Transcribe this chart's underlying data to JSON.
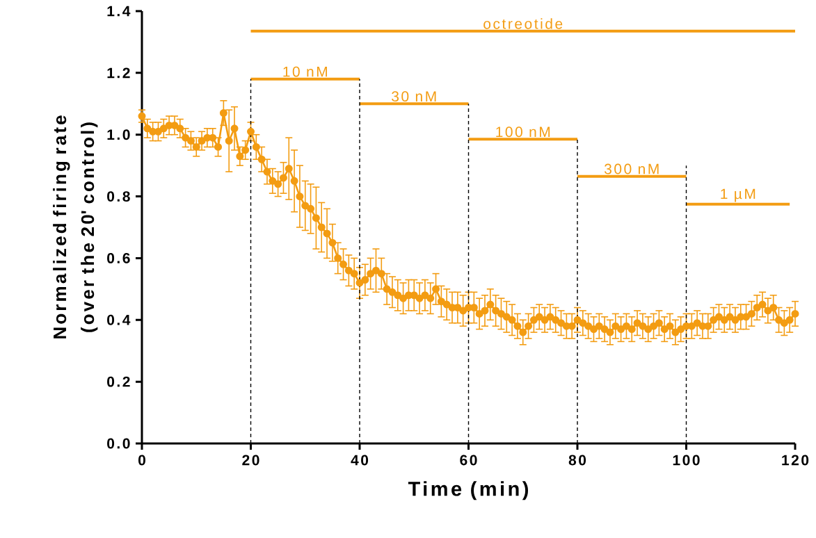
{
  "chart_data": {
    "type": "line",
    "xlabel": "Time (min)",
    "ylabel": "Normalized firing rate (over the 20' control)",
    "xlim": [
      0,
      120
    ],
    "xticks": [
      0,
      20,
      40,
      60,
      80,
      100,
      120
    ],
    "ylim": [
      0,
      1.4
    ],
    "yticks": [
      {
        "value": 0,
        "label": "0.0"
      },
      {
        "value": 0.2,
        "label": "0.2"
      },
      {
        "value": 0.4,
        "label": "0.4"
      },
      {
        "value": 0.6,
        "label": "0.6"
      },
      {
        "value": 0.8,
        "label": "0.8"
      },
      {
        "value": 1.0,
        "label": "1.0"
      },
      {
        "value": 1.2,
        "label": "1.2"
      },
      {
        "value": 1.4,
        "label": "1.4"
      }
    ],
    "grid": false,
    "series": [
      {
        "color": "#f39c12",
        "marker": "circle",
        "line_style": "solid",
        "x": [
          0,
          1,
          2,
          3,
          4,
          5,
          6,
          7,
          8,
          9,
          10,
          11,
          12,
          13,
          14,
          15,
          16,
          17,
          18,
          19,
          20,
          21,
          22,
          23,
          24,
          25,
          26,
          27,
          28,
          29,
          30,
          31,
          32,
          33,
          34,
          35,
          36,
          37,
          38,
          39,
          40,
          41,
          42,
          43,
          44,
          45,
          46,
          47,
          48,
          49,
          50,
          51,
          52,
          53,
          54,
          55,
          56,
          57,
          58,
          59,
          60,
          61,
          62,
          63,
          64,
          65,
          66,
          67,
          68,
          69,
          70,
          71,
          72,
          73,
          74,
          75,
          76,
          77,
          78,
          79,
          80,
          81,
          82,
          83,
          84,
          85,
          86,
          87,
          88,
          89,
          90,
          91,
          92,
          93,
          94,
          95,
          96,
          97,
          98,
          99,
          100,
          101,
          102,
          103,
          104,
          105,
          106,
          107,
          108,
          109,
          110,
          111,
          112,
          113,
          114,
          115,
          116,
          117,
          118,
          119,
          120
        ],
        "values": [
          1.06,
          1.02,
          1.01,
          1.01,
          1.02,
          1.03,
          1.03,
          1.02,
          0.99,
          0.98,
          0.96,
          0.98,
          0.99,
          0.99,
          0.96,
          1.07,
          0.98,
          1.02,
          0.93,
          0.95,
          1.01,
          0.96,
          0.92,
          0.88,
          0.85,
          0.84,
          0.86,
          0.89,
          0.85,
          0.8,
          0.77,
          0.76,
          0.73,
          0.7,
          0.68,
          0.65,
          0.6,
          0.58,
          0.56,
          0.55,
          0.52,
          0.53,
          0.55,
          0.56,
          0.55,
          0.5,
          0.49,
          0.48,
          0.47,
          0.48,
          0.48,
          0.47,
          0.48,
          0.47,
          0.5,
          0.46,
          0.45,
          0.44,
          0.44,
          0.43,
          0.44,
          0.44,
          0.42,
          0.43,
          0.45,
          0.43,
          0.42,
          0.41,
          0.4,
          0.38,
          0.36,
          0.38,
          0.4,
          0.41,
          0.4,
          0.41,
          0.4,
          0.39,
          0.38,
          0.38,
          0.4,
          0.39,
          0.38,
          0.37,
          0.38,
          0.37,
          0.36,
          0.38,
          0.37,
          0.38,
          0.37,
          0.39,
          0.38,
          0.37,
          0.38,
          0.39,
          0.37,
          0.38,
          0.36,
          0.37,
          0.38,
          0.38,
          0.39,
          0.38,
          0.38,
          0.4,
          0.41,
          0.4,
          0.41,
          0.4,
          0.41,
          0.41,
          0.42,
          0.44,
          0.45,
          0.43,
          0.44,
          0.4,
          0.39,
          0.4,
          0.42
        ],
        "errors": [
          0.02,
          0.03,
          0.03,
          0.03,
          0.03,
          0.03,
          0.03,
          0.03,
          0.03,
          0.03,
          0.03,
          0.03,
          0.03,
          0.03,
          0.03,
          0.04,
          0.1,
          0.07,
          0.03,
          0.03,
          0.03,
          0.04,
          0.04,
          0.04,
          0.04,
          0.04,
          0.05,
          0.1,
          0.1,
          0.1,
          0.08,
          0.08,
          0.1,
          0.08,
          0.08,
          0.06,
          0.05,
          0.05,
          0.05,
          0.05,
          0.05,
          0.05,
          0.05,
          0.07,
          0.05,
          0.05,
          0.05,
          0.05,
          0.05,
          0.05,
          0.05,
          0.05,
          0.05,
          0.05,
          0.05,
          0.05,
          0.05,
          0.05,
          0.05,
          0.05,
          0.05,
          0.05,
          0.05,
          0.05,
          0.05,
          0.05,
          0.05,
          0.05,
          0.05,
          0.04,
          0.04,
          0.04,
          0.04,
          0.04,
          0.04,
          0.04,
          0.04,
          0.04,
          0.04,
          0.04,
          0.04,
          0.04,
          0.04,
          0.04,
          0.04,
          0.04,
          0.04,
          0.04,
          0.04,
          0.04,
          0.04,
          0.04,
          0.04,
          0.04,
          0.04,
          0.04,
          0.04,
          0.04,
          0.04,
          0.04,
          0.04,
          0.04,
          0.04,
          0.04,
          0.04,
          0.04,
          0.04,
          0.04,
          0.04,
          0.04,
          0.04,
          0.04,
          0.04,
          0.04,
          0.04,
          0.04,
          0.04,
          0.04,
          0.04,
          0.04,
          0.04
        ]
      },
      {
        "name": "octreotide",
        "color": "#f39c12",
        "marker": "none",
        "line_style": "solid",
        "x": [
          20,
          120
        ],
        "values": [
          1.335,
          1.335
        ]
      },
      {
        "name": "10 nM",
        "color": "#f39c12",
        "marker": "none",
        "line_style": "solid",
        "x": [
          20,
          40
        ],
        "values": [
          1.18,
          1.18
        ]
      },
      {
        "name": "30 nM",
        "color": "#f39c12",
        "marker": "none",
        "line_style": "solid",
        "x": [
          40,
          60
        ],
        "values": [
          1.1,
          1.1
        ]
      },
      {
        "name": "100 nM",
        "color": "#f39c12",
        "marker": "none",
        "line_style": "solid",
        "x": [
          60,
          80
        ],
        "values": [
          0.985,
          0.985
        ]
      },
      {
        "name": "300 nM",
        "color": "#f39c12",
        "marker": "none",
        "line_style": "solid",
        "x": [
          80,
          100
        ],
        "values": [
          0.865,
          0.865
        ]
      },
      {
        "name": "1 µM",
        "color": "#f39c12",
        "marker": "none",
        "line_style": "solid",
        "x": [
          100,
          119
        ],
        "values": [
          0.775,
          0.775
        ]
      },
      {
        "color": "#000000",
        "marker": "none",
        "line_style": "dashed",
        "x": [
          20,
          20
        ],
        "values": [
          0,
          1.18
        ]
      },
      {
        "color": "#000000",
        "marker": "none",
        "line_style": "dashed",
        "x": [
          40,
          40
        ],
        "values": [
          0,
          1.18
        ]
      },
      {
        "color": "#000000",
        "marker": "none",
        "line_style": "dashed",
        "x": [
          60,
          60
        ],
        "values": [
          0,
          1.1
        ]
      },
      {
        "color": "#000000",
        "marker": "none",
        "line_style": "dashed",
        "x": [
          80,
          80
        ],
        "values": [
          0,
          0.985
        ]
      },
      {
        "color": "#000000",
        "marker": "none",
        "line_style": "dashed",
        "x": [
          100,
          100
        ],
        "values": [
          0,
          0.9
        ]
      }
    ]
  }
}
